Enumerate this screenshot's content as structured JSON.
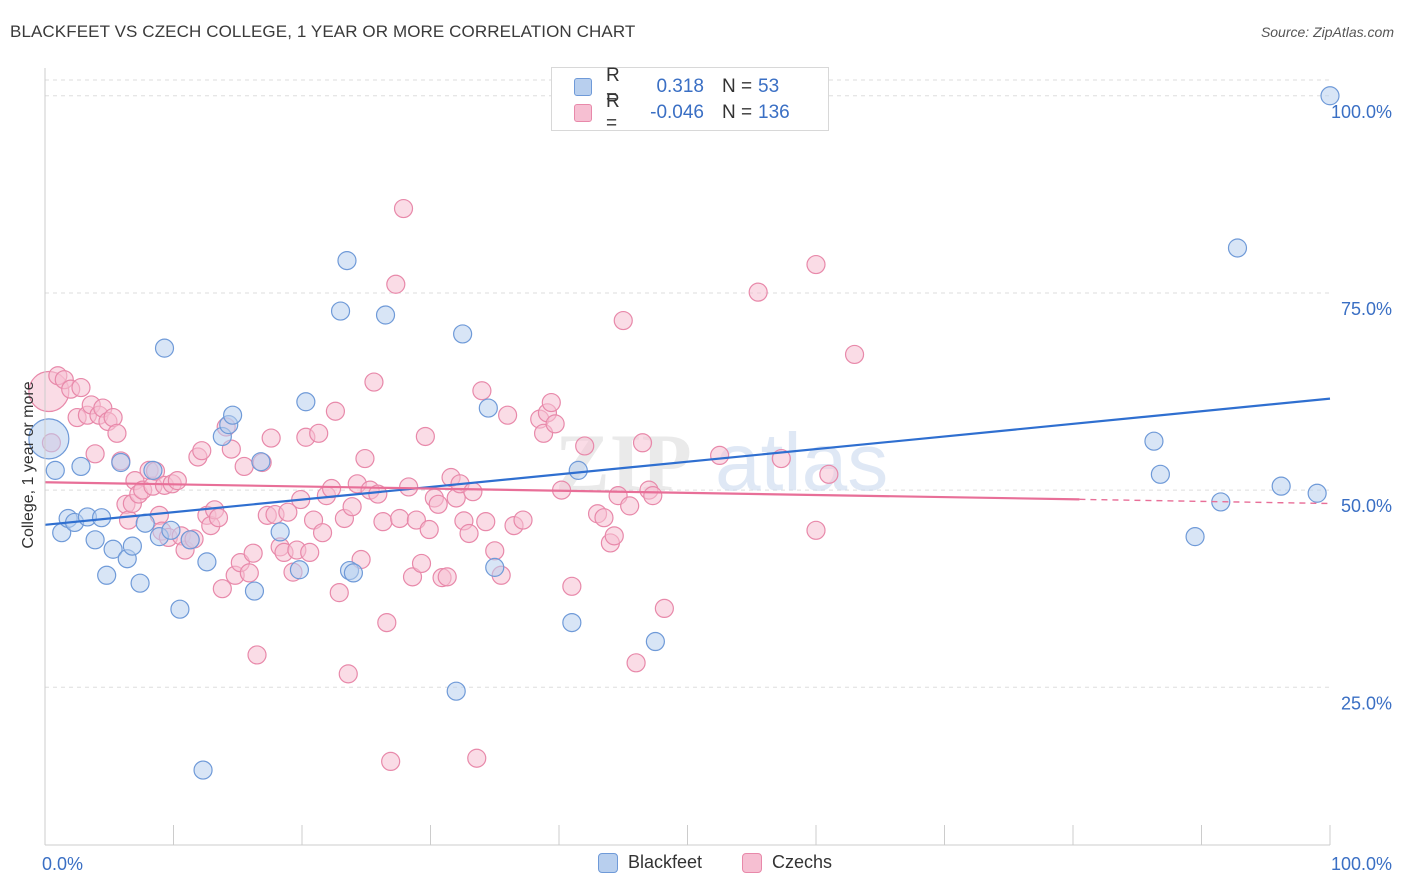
{
  "title": "BLACKFEET VS CZECH COLLEGE, 1 YEAR OR MORE CORRELATION CHART",
  "source": "Source: ZipAtlas.com",
  "watermark": {
    "zip": "ZIP",
    "atlas": "atlas"
  },
  "colors": {
    "blue_fill": "#b8cfee",
    "blue_stroke": "#6f9ad8",
    "blue_line": "#2f6fd0",
    "pink_fill": "#f6bfd2",
    "pink_stroke": "#e889aa",
    "pink_line": "#e86f98",
    "tick_label": "#3a6fc4",
    "grid": "#dddddd"
  },
  "legend": {
    "rows": [
      {
        "r_label": "R =",
        "r_value": "0.318",
        "n_label": "N =",
        "n_value": "53"
      },
      {
        "r_label": "R =",
        "r_value": "-0.046",
        "n_label": "N =",
        "n_value": "136"
      }
    ]
  },
  "chart_data": {
    "type": "scatter",
    "title": "BLACKFEET VS CZECH COLLEGE, 1 YEAR OR MORE CORRELATION CHART",
    "xlabel": "",
    "ylabel": "College, 1 year or more",
    "xlim": [
      0,
      100
    ],
    "ylim": [
      5,
      102
    ],
    "x_tick_labels": [
      "0.0%",
      "100.0%"
    ],
    "y_ticks": [
      25,
      50,
      75,
      100
    ],
    "y_tick_labels": [
      "25.0%",
      "50.0%",
      "75.0%",
      "100.0%"
    ],
    "grid": "horizontal dashed",
    "legend_position": "top-center",
    "series": [
      {
        "name": "Blackfeet",
        "color": "#6f9ad8",
        "trend": {
          "x": [
            0,
            100
          ],
          "y": [
            45.6,
            61.6
          ],
          "dashed_from": null
        },
        "points": [
          [
            0.3,
            56.5,
            20
          ],
          [
            0.8,
            52.5,
            9
          ],
          [
            1.3,
            44.6,
            9
          ],
          [
            1.8,
            46.4,
            9
          ],
          [
            2.3,
            45.9,
            9
          ],
          [
            2.8,
            53.0,
            9
          ],
          [
            3.3,
            46.6,
            9
          ],
          [
            3.9,
            43.7,
            9
          ],
          [
            4.4,
            46.5,
            9
          ],
          [
            4.8,
            39.2,
            9
          ],
          [
            5.3,
            42.5,
            9
          ],
          [
            5.9,
            53.5,
            9
          ],
          [
            6.4,
            41.3,
            9
          ],
          [
            6.8,
            42.9,
            9
          ],
          [
            7.4,
            38.2,
            9
          ],
          [
            7.8,
            45.8,
            9
          ],
          [
            8.4,
            52.5,
            9
          ],
          [
            8.9,
            44.1,
            9
          ],
          [
            9.3,
            68.0,
            9
          ],
          [
            9.8,
            44.9,
            9
          ],
          [
            10.5,
            34.9,
            9
          ],
          [
            11.3,
            43.7,
            9
          ],
          [
            12.3,
            14.5,
            9
          ],
          [
            12.6,
            40.9,
            9
          ],
          [
            13.8,
            56.8,
            9
          ],
          [
            14.3,
            58.3,
            9
          ],
          [
            14.6,
            59.5,
            9
          ],
          [
            16.3,
            37.2,
            9
          ],
          [
            16.8,
            53.6,
            9
          ],
          [
            18.3,
            44.7,
            9
          ],
          [
            20.3,
            61.2,
            9
          ],
          [
            19.8,
            39.9,
            9
          ],
          [
            23.7,
            39.8,
            9
          ],
          [
            23.5,
            79.1,
            9
          ],
          [
            24.0,
            39.5,
            9
          ],
          [
            23.0,
            72.7,
            9
          ],
          [
            26.5,
            72.2,
            9
          ],
          [
            32.5,
            69.8,
            9
          ],
          [
            34.5,
            60.4,
            9
          ],
          [
            35.0,
            40.2,
            9
          ],
          [
            32.0,
            24.5,
            9
          ],
          [
            41.0,
            33.2,
            9
          ],
          [
            41.5,
            52.5,
            9
          ],
          [
            47.5,
            30.8,
            9
          ],
          [
            86.3,
            56.2,
            9
          ],
          [
            86.8,
            52.0,
            9
          ],
          [
            89.5,
            44.1,
            9
          ],
          [
            91.5,
            48.5,
            9
          ],
          [
            92.8,
            80.7,
            9
          ],
          [
            96.2,
            50.5,
            9
          ],
          [
            99.0,
            49.6,
            9
          ],
          [
            100.0,
            100.0,
            9
          ]
        ]
      },
      {
        "name": "Czechs",
        "color": "#e889aa",
        "trend": {
          "x": [
            0,
            100
          ],
          "y": [
            51.0,
            48.3
          ],
          "dashed_from": 80.5
        },
        "points": [
          [
            0.3,
            62.5,
            20
          ],
          [
            0.5,
            56.0,
            9
          ],
          [
            1.0,
            64.5,
            9
          ],
          [
            1.5,
            64.0,
            9
          ],
          [
            2.0,
            62.8,
            9
          ],
          [
            2.5,
            59.2,
            9
          ],
          [
            2.8,
            63.0,
            9
          ],
          [
            3.3,
            59.5,
            9
          ],
          [
            3.6,
            60.8,
            9
          ],
          [
            3.9,
            54.6,
            9
          ],
          [
            4.2,
            59.5,
            9
          ],
          [
            4.5,
            60.4,
            9
          ],
          [
            4.9,
            58.7,
            9
          ],
          [
            5.3,
            59.2,
            9
          ],
          [
            5.6,
            57.2,
            9
          ],
          [
            5.9,
            53.7,
            9
          ],
          [
            6.3,
            48.2,
            9
          ],
          [
            6.5,
            46.2,
            9
          ],
          [
            6.8,
            48.3,
            9
          ],
          [
            7.0,
            51.2,
            9
          ],
          [
            7.3,
            49.5,
            9
          ],
          [
            7.6,
            50.0,
            9
          ],
          [
            8.1,
            52.5,
            9
          ],
          [
            8.4,
            50.5,
            9
          ],
          [
            8.6,
            52.4,
            9
          ],
          [
            8.9,
            46.8,
            9
          ],
          [
            9.1,
            44.8,
            9
          ],
          [
            9.3,
            50.6,
            9
          ],
          [
            9.6,
            44.0,
            9
          ],
          [
            9.9,
            50.8,
            9
          ],
          [
            10.3,
            51.2,
            9
          ],
          [
            10.6,
            44.2,
            9
          ],
          [
            10.9,
            42.4,
            9
          ],
          [
            11.3,
            43.7,
            9
          ],
          [
            11.6,
            43.8,
            9
          ],
          [
            11.9,
            54.2,
            9
          ],
          [
            12.2,
            55.0,
            9
          ],
          [
            12.6,
            46.8,
            9
          ],
          [
            12.9,
            45.5,
            9
          ],
          [
            13.2,
            47.5,
            9
          ],
          [
            13.5,
            46.5,
            9
          ],
          [
            13.8,
            37.5,
            9
          ],
          [
            14.1,
            58.0,
            9
          ],
          [
            14.5,
            55.2,
            9
          ],
          [
            14.8,
            39.2,
            9
          ],
          [
            15.2,
            40.8,
            9
          ],
          [
            15.5,
            53.0,
            9
          ],
          [
            15.9,
            39.5,
            9
          ],
          [
            16.2,
            42.0,
            9
          ],
          [
            16.5,
            29.1,
            9
          ],
          [
            16.9,
            53.5,
            9
          ],
          [
            17.3,
            46.8,
            9
          ],
          [
            17.6,
            56.6,
            9
          ],
          [
            17.9,
            46.9,
            9
          ],
          [
            18.3,
            42.8,
            9
          ],
          [
            18.6,
            42.1,
            9
          ],
          [
            18.9,
            47.2,
            9
          ],
          [
            19.3,
            39.6,
            9
          ],
          [
            19.6,
            42.4,
            9
          ],
          [
            19.9,
            48.8,
            9
          ],
          [
            20.3,
            56.7,
            9
          ],
          [
            20.6,
            42.1,
            9
          ],
          [
            20.9,
            46.2,
            9
          ],
          [
            21.3,
            57.2,
            9
          ],
          [
            21.6,
            44.6,
            9
          ],
          [
            21.9,
            49.3,
            9
          ],
          [
            22.3,
            50.2,
            9
          ],
          [
            22.6,
            60.0,
            9
          ],
          [
            22.9,
            37.0,
            9
          ],
          [
            23.3,
            46.4,
            9
          ],
          [
            23.6,
            26.7,
            9
          ],
          [
            23.9,
            47.9,
            9
          ],
          [
            24.3,
            50.8,
            9
          ],
          [
            24.6,
            41.2,
            9
          ],
          [
            24.9,
            54.0,
            9
          ],
          [
            25.3,
            50.0,
            9
          ],
          [
            25.6,
            63.7,
            9
          ],
          [
            25.9,
            49.5,
            9
          ],
          [
            26.3,
            46.0,
            9
          ],
          [
            26.6,
            33.2,
            9
          ],
          [
            26.9,
            15.6,
            9
          ],
          [
            27.3,
            76.1,
            9
          ],
          [
            27.6,
            46.4,
            9
          ],
          [
            27.9,
            85.7,
            9
          ],
          [
            28.3,
            50.4,
            9
          ],
          [
            28.6,
            39.0,
            9
          ],
          [
            28.9,
            46.2,
            9
          ],
          [
            29.3,
            40.7,
            9
          ],
          [
            29.6,
            56.8,
            9
          ],
          [
            29.9,
            45.0,
            9
          ],
          [
            30.3,
            49.0,
            9
          ],
          [
            30.6,
            48.2,
            9
          ],
          [
            30.9,
            38.9,
            9
          ],
          [
            31.3,
            39.0,
            9
          ],
          [
            31.6,
            51.6,
            9
          ],
          [
            32.0,
            49.0,
            9
          ],
          [
            32.3,
            50.8,
            9
          ],
          [
            32.6,
            46.1,
            9
          ],
          [
            33.0,
            44.5,
            9
          ],
          [
            33.3,
            49.8,
            9
          ],
          [
            33.6,
            16.0,
            9
          ],
          [
            34.0,
            62.6,
            9
          ],
          [
            34.3,
            46.0,
            9
          ],
          [
            35.0,
            42.3,
            9
          ],
          [
            35.5,
            39.2,
            9
          ],
          [
            36.0,
            59.5,
            9
          ],
          [
            36.5,
            45.5,
            9
          ],
          [
            37.2,
            46.2,
            9
          ],
          [
            38.5,
            59.0,
            9
          ],
          [
            38.8,
            57.2,
            9
          ],
          [
            39.1,
            59.8,
            9
          ],
          [
            39.4,
            61.1,
            9
          ],
          [
            39.7,
            58.4,
            9
          ],
          [
            40.2,
            50.0,
            9
          ],
          [
            41.0,
            37.8,
            9
          ],
          [
            42.0,
            55.6,
            9
          ],
          [
            43.0,
            47.0,
            9
          ],
          [
            43.5,
            46.5,
            9
          ],
          [
            44.0,
            43.3,
            9
          ],
          [
            44.3,
            44.2,
            9
          ],
          [
            44.6,
            49.3,
            9
          ],
          [
            45.0,
            71.5,
            9
          ],
          [
            45.5,
            48.0,
            9
          ],
          [
            46.0,
            28.1,
            9
          ],
          [
            46.5,
            56.0,
            9
          ],
          [
            47.0,
            50.0,
            9
          ],
          [
            47.3,
            49.3,
            9
          ],
          [
            48.2,
            35.0,
            9
          ],
          [
            52.5,
            54.4,
            9
          ],
          [
            55.5,
            75.1,
            9
          ],
          [
            57.3,
            54.0,
            9
          ],
          [
            60.0,
            78.6,
            9
          ],
          [
            61.0,
            52.0,
            9
          ],
          [
            63.0,
            67.2,
            9
          ],
          [
            60.0,
            44.9,
            9
          ]
        ]
      }
    ]
  }
}
